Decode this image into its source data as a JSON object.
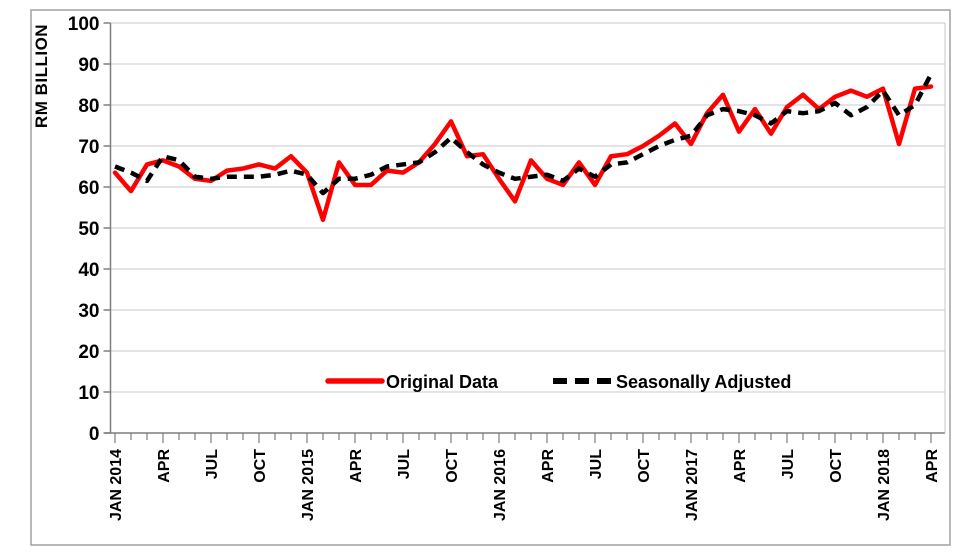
{
  "chart_data": {
    "type": "line",
    "title": "",
    "ylabel": "RM BILLION",
    "xlabel": "",
    "ylim": [
      0,
      100
    ],
    "y_ticks": [
      0,
      10,
      20,
      30,
      40,
      50,
      60,
      70,
      80,
      90,
      100
    ],
    "grid": "horizontal",
    "legend_position": "inside-bottom-center",
    "x_label_every_n_months": 3,
    "x_axis_labels": [
      "JAN 2014",
      "APR",
      "JUL",
      "OCT",
      "JAN 2015",
      "APR",
      "JUL",
      "OCT",
      "JAN 2016",
      "APR",
      "JUL",
      "OCT",
      "JAN 2017",
      "APR",
      "JUL",
      "OCT",
      "JAN 2018",
      "APR"
    ],
    "x": [
      "Jan 2014",
      "Feb 2014",
      "Mar 2014",
      "Apr 2014",
      "May 2014",
      "Jun 2014",
      "Jul 2014",
      "Aug 2014",
      "Sep 2014",
      "Oct 2014",
      "Nov 2014",
      "Dec 2014",
      "Jan 2015",
      "Feb 2015",
      "Mar 2015",
      "Apr 2015",
      "May 2015",
      "Jun 2015",
      "Jul 2015",
      "Aug 2015",
      "Sep 2015",
      "Oct 2015",
      "Nov 2015",
      "Dec 2015",
      "Jan 2016",
      "Feb 2016",
      "Mar 2016",
      "Apr 2016",
      "May 2016",
      "Jun 2016",
      "Jul 2016",
      "Aug 2016",
      "Sep 2016",
      "Oct 2016",
      "Nov 2016",
      "Dec 2016",
      "Jan 2017",
      "Feb 2017",
      "Mar 2017",
      "Apr 2017",
      "May 2017",
      "Jun 2017",
      "Jul 2017",
      "Aug 2017",
      "Sep 2017",
      "Oct 2017",
      "Nov 2017",
      "Dec 2017",
      "Jan 2018",
      "Feb 2018",
      "Mar 2018",
      "Apr 2018"
    ],
    "series": [
      {
        "name": "Original Data",
        "color": "#ff0000",
        "line_style": "solid",
        "values": [
          63.5,
          59,
          65.5,
          66.5,
          65,
          62,
          61.5,
          64,
          64.5,
          65.5,
          64.5,
          67.5,
          63.5,
          52,
          66,
          60.5,
          60.5,
          64,
          63.5,
          66,
          70.5,
          76,
          67.5,
          68,
          62,
          56.5,
          66.5,
          62,
          60.5,
          66,
          60.5,
          67.5,
          68,
          70,
          72.5,
          75.5,
          70.5,
          78,
          82.5,
          73.5,
          79,
          73,
          79.5,
          82.5,
          79,
          82,
          83.5,
          82,
          84,
          70.5,
          84,
          84.5
        ]
      },
      {
        "name": "Seasonally Adjusted",
        "color": "#000000",
        "line_style": "dashed",
        "values": [
          65,
          63.5,
          61.5,
          67.5,
          66.5,
          62.5,
          62,
          62.5,
          62.5,
          62.5,
          63,
          64,
          63,
          58.5,
          62,
          62,
          63,
          65,
          65.5,
          66,
          68.5,
          72,
          68.5,
          65.5,
          63.5,
          62,
          62.5,
          63,
          61.5,
          64.5,
          62.5,
          65.5,
          66,
          68,
          70,
          71.5,
          72.5,
          77.5,
          79,
          78.5,
          77.5,
          75.5,
          78.5,
          78,
          78.5,
          80.5,
          77.5,
          79.5,
          83.5,
          77.5,
          80,
          87.5
        ]
      }
    ]
  },
  "colors": {
    "background": "#ffffff",
    "frame_border": "#a0a0a0",
    "gridline": "#c9c9c9",
    "axis": "#7f7f7f",
    "tick": "#7f7f7f",
    "series_original": "#ff0000",
    "series_seasonal": "#000000"
  }
}
